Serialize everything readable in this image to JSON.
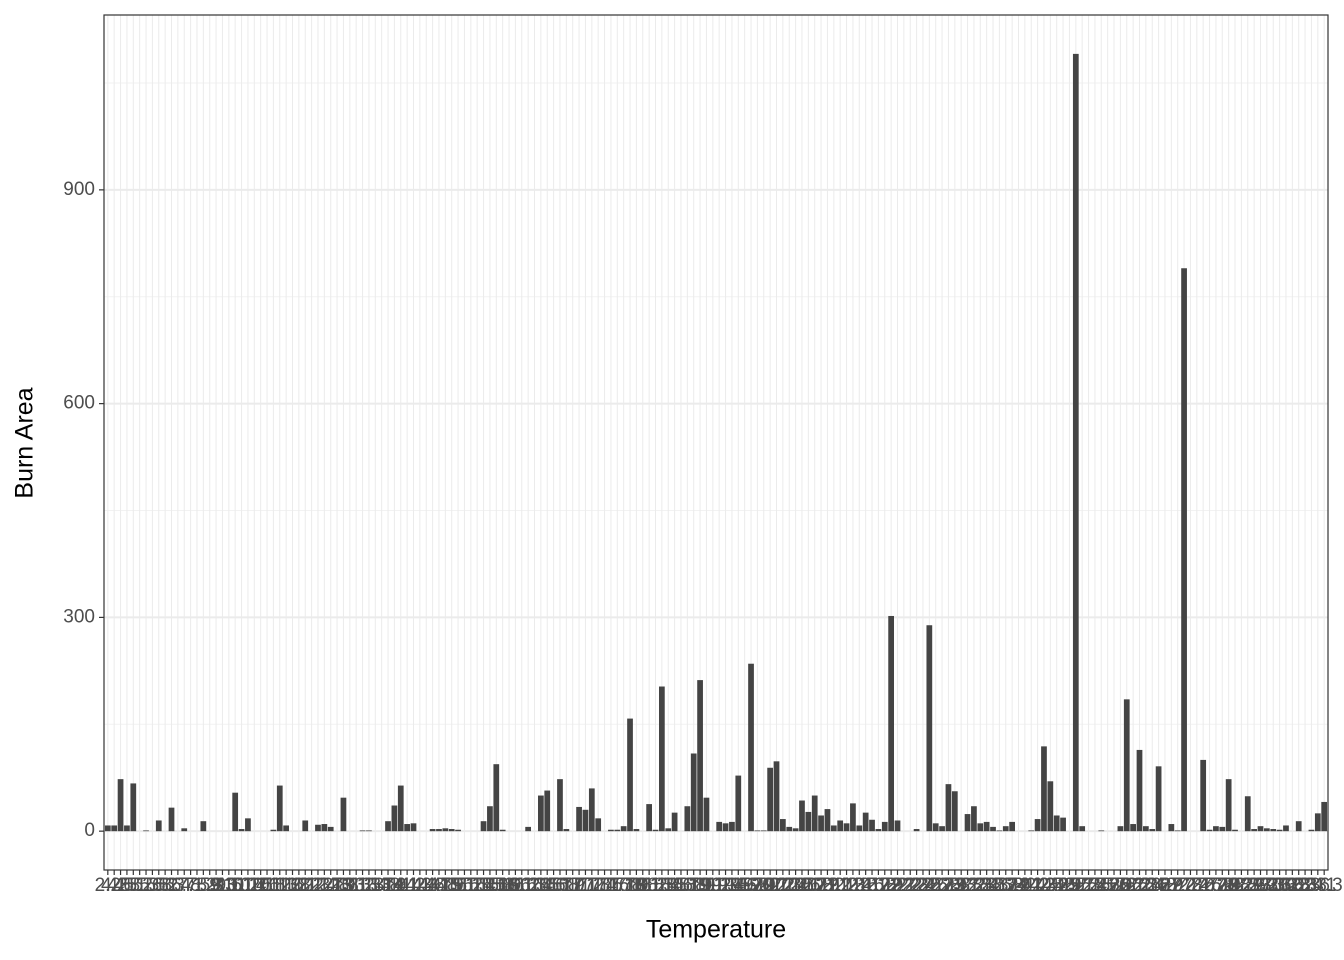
{
  "chart_data": {
    "type": "bar",
    "x_label": "Temperature",
    "y_label": "Burn Area",
    "categories": [
      "2.2",
      "4.2",
      "4.6",
      "4.8",
      "5.1",
      "5.2",
      "5.3",
      "5.5",
      "5.8",
      "6.2",
      "6.3",
      "6.4",
      "6.7",
      "7.1",
      "7.5",
      "8.2",
      "8.8",
      "9",
      "9.3",
      "9.6",
      "10.1",
      "10.2",
      "10.4",
      "10.5",
      "10.6",
      "10.8",
      "11.2",
      "11.3",
      "11.6",
      "11.8",
      "12.1",
      "12.2",
      "12.3",
      "12.4",
      "12.7",
      "12.8",
      "12.9",
      "13",
      "13.1",
      "13.2",
      "13.3",
      "13.4",
      "13.7",
      "13.8",
      "13.9",
      "14",
      "14.1",
      "14.2",
      "14.3",
      "14.4",
      "14.6",
      "14.7",
      "14.8",
      "14.9",
      "15",
      "15.1",
      "15.2",
      "15.3",
      "15.4",
      "15.5",
      "15.6",
      "15.8",
      "15.9",
      "16",
      "16.1",
      "16.2",
      "16.3",
      "16.4",
      "16.5",
      "16.6",
      "16.7",
      "16.8",
      "16.9",
      "17",
      "17.1",
      "17.2",
      "17.3",
      "17.4",
      "17.5",
      "17.6",
      "17.7",
      "17.8",
      "17.9",
      "18",
      "18.1",
      "18.2",
      "18.3",
      "18.4",
      "18.5",
      "18.6",
      "18.7",
      "18.8",
      "18.9",
      "19",
      "19.1",
      "19.2",
      "19.3",
      "19.4",
      "19.5",
      "19.6",
      "19.7",
      "19.8",
      "19.9",
      "20",
      "20.1",
      "20.2",
      "20.3",
      "20.4",
      "20.5",
      "20.6",
      "20.7",
      "20.8",
      "20.9",
      "21",
      "21.1",
      "21.2",
      "21.3",
      "21.4",
      "21.5",
      "21.6",
      "21.7",
      "21.8",
      "21.9",
      "22",
      "22.1",
      "22.2",
      "22.3",
      "22.4",
      "22.5",
      "22.6",
      "22.7",
      "22.8",
      "22.9",
      "23",
      "23.1",
      "23.2",
      "23.3",
      "23.4",
      "23.5",
      "23.6",
      "23.7",
      "23.8",
      "23.9",
      "24",
      "24.1",
      "24.2",
      "24.3",
      "24.5",
      "24.6",
      "24.8",
      "24.9",
      "25",
      "25.1",
      "25.3",
      "25.4",
      "25.5",
      "25.6",
      "25.7",
      "25.9",
      "26",
      "26.1",
      "26.2",
      "26.3",
      "26.4",
      "26.6",
      "26.8",
      "26.9",
      "27",
      "27.2",
      "27.3",
      "27.4",
      "27.5",
      "27.6",
      "27.7",
      "27.8",
      "27.9",
      "28",
      "28.2",
      "28.3",
      "28.6",
      "28.7",
      "29.2",
      "29.3",
      "29.6",
      "30.2",
      "30.6",
      "30.8",
      "32.3",
      "32.4",
      "32.6",
      "33.1",
      "33.3"
    ],
    "values": [
      8,
      8,
      73,
      8,
      67,
      0,
      1,
      0,
      15,
      0,
      33,
      0,
      4,
      0,
      0,
      14,
      0,
      0,
      0,
      0,
      54,
      3,
      18,
      0,
      0,
      0,
      2,
      64,
      8,
      0,
      0,
      15,
      0,
      9,
      10,
      6,
      0,
      47,
      0,
      0,
      1,
      1,
      0,
      0,
      14,
      36,
      64,
      10,
      11,
      0,
      0,
      3,
      3,
      4,
      3,
      2,
      0,
      0,
      0,
      14,
      35,
      94,
      2,
      0,
      0,
      0,
      6,
      0,
      50,
      57,
      0,
      73,
      3,
      0,
      34,
      30,
      60,
      18,
      0,
      2,
      2,
      7,
      158,
      3,
      0,
      38,
      2,
      203,
      4,
      26,
      0,
      35,
      109,
      212,
      47,
      0,
      13,
      11,
      13,
      78,
      0,
      235,
      1,
      1,
      89,
      98,
      17,
      6,
      4,
      43,
      27,
      50,
      22,
      31,
      8,
      15,
      11,
      39,
      8,
      26,
      16,
      3,
      13,
      302,
      15,
      0,
      0,
      3,
      0,
      289,
      11,
      7,
      66,
      56,
      0,
      24,
      35,
      11,
      13,
      6,
      1,
      7,
      13,
      0,
      0,
      1,
      17,
      119,
      70,
      22,
      19,
      0,
      1090.84,
      7,
      0,
      0,
      1,
      0,
      0,
      7,
      185,
      10,
      114,
      7,
      3,
      91,
      0,
      10,
      1,
      790,
      0,
      0,
      100,
      2,
      7,
      6,
      73,
      2,
      0,
      49,
      3,
      7,
      4,
      3,
      2,
      8,
      0,
      14,
      0,
      2,
      25,
      41
    ],
    "color": "#444444",
    "ylim": [
      -54.5,
      1145.4
    ],
    "yticks": [
      0,
      300,
      600,
      900
    ],
    "yminor": [
      150,
      450,
      750,
      1050
    ],
    "grid": true
  }
}
